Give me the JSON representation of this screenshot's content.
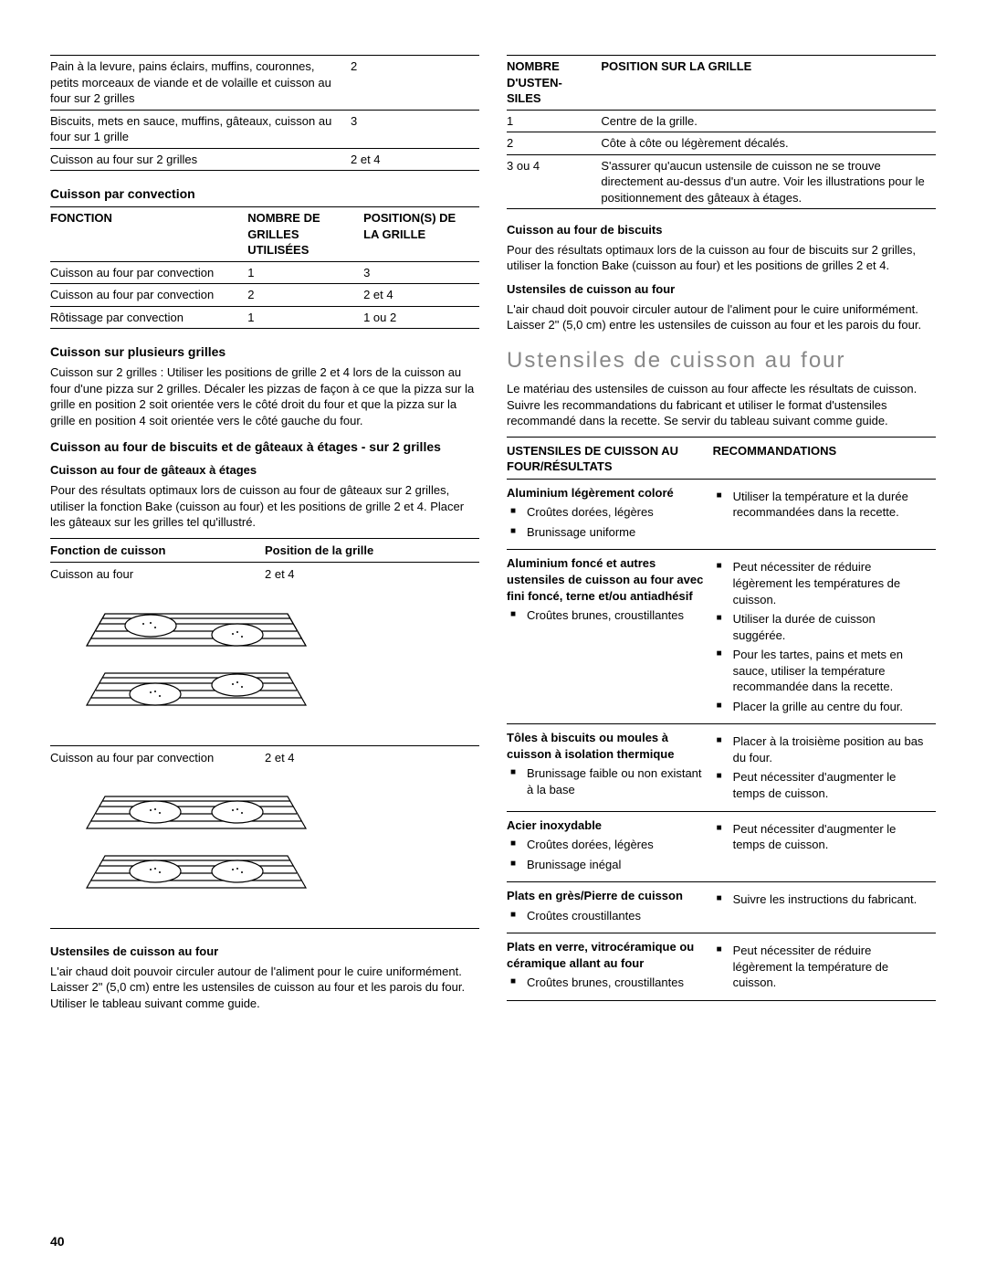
{
  "left": {
    "t1": {
      "rows": [
        {
          "a": "Pain à la levure, pains éclairs, muffins, couronnes, petits morceaux de viande et de volaille et cuisson au four sur 2 grilles",
          "b": "2"
        },
        {
          "a": "Biscuits, mets en sauce, muffins, gâteaux, cuisson au four sur 1 grille",
          "b": "3"
        },
        {
          "a": "Cuisson au four sur 2 grilles",
          "b": "2 et 4"
        }
      ]
    },
    "conv_hdr": "Cuisson par convection",
    "t2": {
      "h1": "FONCTION",
      "h2": "NOMBRE DE GRILLES UTILISÉES",
      "h3": "POSITION(S) DE LA GRILLE",
      "rows": [
        {
          "a": "Cuisson au four par convection",
          "b": "1",
          "c": "3"
        },
        {
          "a": "Cuisson au four par convection",
          "b": "2",
          "c": "2 et 4"
        },
        {
          "a": "Rôtissage par convection",
          "b": "1",
          "c": "1 ou 2"
        }
      ]
    },
    "multi_hdr": "Cuisson sur plusieurs grilles",
    "multi_p": "Cuisson sur 2 grilles : Utiliser les positions de grille 2 et 4 lors de la cuisson au four d'une pizza sur 2 grilles. Décaler les pizzas de façon à ce que la pizza sur la grille en position 2 soit orientée vers le côté droit du four et que la pizza sur la grille en position 4 soit orientée vers le côté gauche du four.",
    "b2_hdr": "Cuisson au four de biscuits et de gâteaux à étages - sur 2 grilles",
    "cake_hdr": "Cuisson au four de gâteaux à étages",
    "cake_p": "Pour des résultats optimaux lors de cuisson au four de gâteaux sur 2 grilles, utiliser la fonction Bake (cuisson au four) et les positions de grille 2 et 4. Placer les gâteaux sur les grilles tel qu'illustré.",
    "t3": {
      "h1": "Fonction de cuisson",
      "h2": "Position de la grille",
      "r1a": "Cuisson au four",
      "r1b": "2 et 4",
      "r2a": "Cuisson au four par convection",
      "r2b": "2 et 4"
    },
    "ust_hdr": "Ustensiles de cuisson au four",
    "ust_p": "L'air chaud doit pouvoir circuler autour de l'aliment pour le cuire uniformément. Laisser 2\" (5,0 cm) entre les ustensiles de cuisson au four et les parois du four. Utiliser le tableau suivant comme guide."
  },
  "right": {
    "t4": {
      "h1": "NOMBRE D'USTEN-SILES",
      "h2": "POSITION SUR LA GRILLE",
      "rows": [
        {
          "a": "1",
          "b": "Centre de la grille."
        },
        {
          "a": "2",
          "b": "Côte à côte ou légèrement décalés."
        },
        {
          "a": "3 ou 4",
          "b": "S'assurer qu'aucun ustensile de cuisson ne se trouve directement au-dessus d'un autre. Voir les illustrations pour le positionnement des gâteaux à étages."
        }
      ]
    },
    "bisc_hdr": "Cuisson au four de biscuits",
    "bisc_p": "Pour des résultats optimaux lors de la cuisson au four de biscuits sur 2 grilles, utiliser la fonction Bake (cuisson au four) et les positions de grilles 2 et 4.",
    "ust2_hdr": "Ustensiles de cuisson au four",
    "ust2_p": "L'air chaud doit pouvoir circuler autour de l'aliment pour le cuire uniformément. Laisser 2\" (5,0 cm) entre les ustensiles de cuisson au four et les parois du four.",
    "title": "Ustensiles de cuisson au four",
    "intro": "Le matériau des ustensiles de cuisson au four affecte les résultats de cuisson. Suivre les recommandations du fabricant et utiliser le format d'ustensiles recommandé dans la recette. Se servir du tableau suivant comme guide.",
    "bt": {
      "h1": "USTENSILES DE CUISSON AU FOUR/RÉSULTATS",
      "h2": "RECOMMANDATIONS",
      "rows": [
        {
          "name": "Aluminium légèrement coloré",
          "res": [
            "Croûtes dorées, légères",
            "Brunissage uniforme"
          ],
          "rec": [
            "Utiliser la température et la durée recommandées dans la recette."
          ]
        },
        {
          "name": "Aluminium foncé et autres ustensiles de cuisson au four avec fini foncé, terne et/ou antiadhésif",
          "res": [
            "Croûtes brunes, croustillantes"
          ],
          "rec": [
            "Peut nécessiter de réduire légèrement les températures de cuisson.",
            "Utiliser la durée de cuisson suggérée.",
            "Pour les tartes, pains et mets en sauce, utiliser la température recommandée dans la recette.",
            "Placer la grille au centre du four."
          ]
        },
        {
          "name": "Tôles à biscuits ou moules à cuisson à isolation thermique",
          "res": [
            "Brunissage faible ou non existant à la base"
          ],
          "rec": [
            "Placer à la troisième position au bas du four.",
            "Peut nécessiter d'augmenter le temps de cuisson."
          ]
        },
        {
          "name": "Acier inoxydable",
          "res": [
            "Croûtes dorées, légères",
            "Brunissage inégal"
          ],
          "rec": [
            "Peut nécessiter d'augmenter le temps de cuisson."
          ]
        },
        {
          "name": "Plats en grès/Pierre de cuisson",
          "res": [
            "Croûtes croustillantes"
          ],
          "rec": [
            "Suivre les instructions du fabricant."
          ]
        },
        {
          "name": "Plats en verre, vitrocéramique ou céramique allant au four",
          "res": [
            "Croûtes brunes, croustillantes"
          ],
          "rec": [
            "Peut nécessiter de réduire légèrement la température de cuisson."
          ]
        }
      ]
    }
  },
  "page": "40"
}
